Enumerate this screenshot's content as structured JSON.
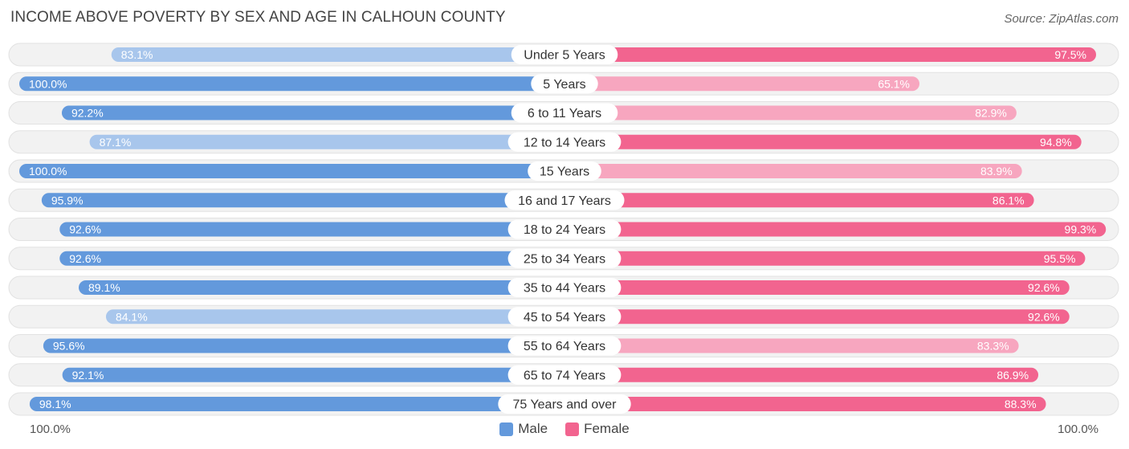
{
  "title": "INCOME ABOVE POVERTY BY SEX AND AGE IN CALHOUN COUNTY",
  "source": "Source: ZipAtlas.com",
  "colors": {
    "male_strong": "#6399dc",
    "male_light": "#a8c6ec",
    "female_strong": "#f2648f",
    "female_light": "#f7a6bf",
    "track": "#f0f0f0"
  },
  "axis": {
    "left_label": "100.0%",
    "right_label": "100.0%"
  },
  "legend": {
    "male": "Male",
    "female": "Female"
  },
  "chart_data": {
    "type": "bar",
    "orientation": "horizontal-diverging",
    "categories": [
      "Under 5 Years",
      "5 Years",
      "6 to 11 Years",
      "12 to 14 Years",
      "15 Years",
      "16 and 17 Years",
      "18 to 24 Years",
      "25 to 34 Years",
      "35 to 44 Years",
      "45 to 54 Years",
      "55 to 64 Years",
      "65 to 74 Years",
      "75 Years and over"
    ],
    "series": [
      {
        "name": "Male",
        "values": [
          83.1,
          100.0,
          92.2,
          87.1,
          100.0,
          95.9,
          92.6,
          92.6,
          89.1,
          84.1,
          95.6,
          92.1,
          98.1
        ],
        "labels": [
          "83.1%",
          "100.0%",
          "92.2%",
          "87.1%",
          "100.0%",
          "95.9%",
          "92.6%",
          "92.6%",
          "89.1%",
          "84.1%",
          "95.6%",
          "92.1%",
          "98.1%"
        ]
      },
      {
        "name": "Female",
        "values": [
          97.5,
          65.1,
          82.9,
          94.8,
          83.9,
          86.1,
          99.3,
          95.5,
          92.6,
          92.6,
          83.3,
          86.9,
          88.3
        ],
        "labels": [
          "97.5%",
          "65.1%",
          "82.9%",
          "94.8%",
          "83.9%",
          "86.1%",
          "99.3%",
          "95.5%",
          "92.6%",
          "92.6%",
          "83.3%",
          "86.9%",
          "88.3%"
        ]
      }
    ],
    "xlim": [
      0,
      100
    ],
    "legend_position": "bottom-center"
  }
}
